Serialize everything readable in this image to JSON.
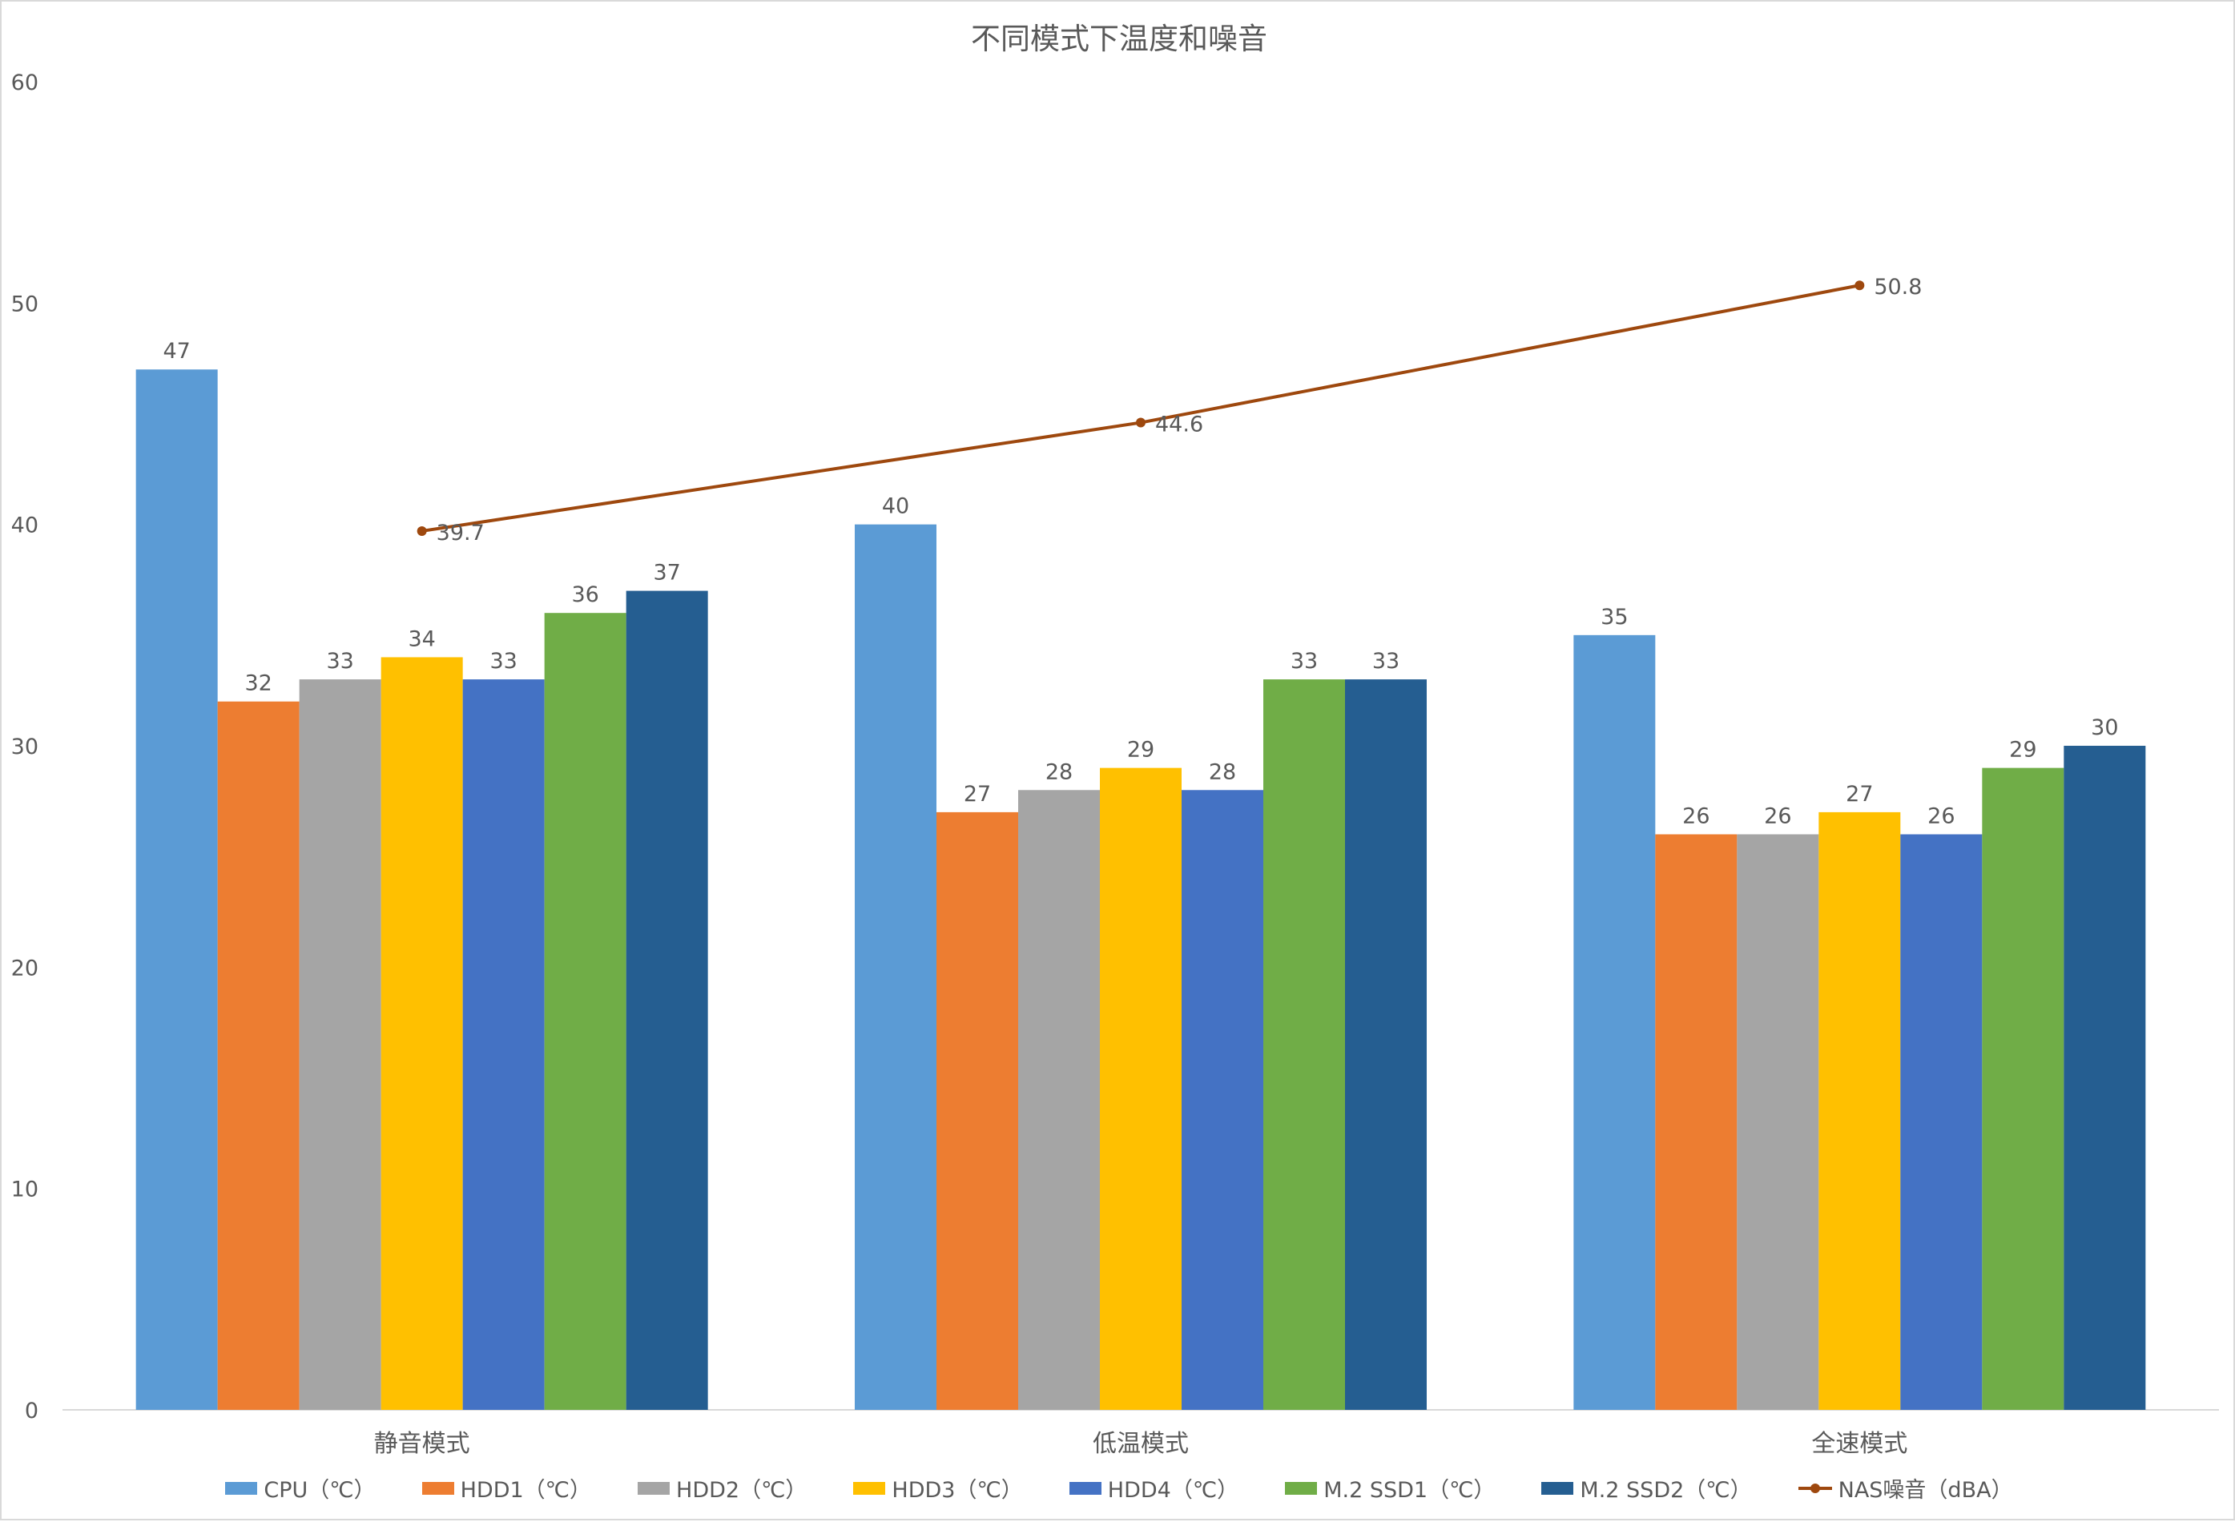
{
  "chart_data": {
    "type": "bar",
    "title": "不同模式下温度和噪音",
    "categories": [
      "静音模式",
      "低温模式",
      "全速模式"
    ],
    "ylim": [
      0,
      60
    ],
    "yticks": [
      0,
      10,
      20,
      30,
      40,
      50,
      60
    ],
    "grid": false,
    "legend": "bottom",
    "series": [
      {
        "name": "CPU（℃）",
        "type": "bar",
        "color": "#5b9bd5",
        "values": [
          47,
          40,
          35
        ]
      },
      {
        "name": "HDD1（℃）",
        "type": "bar",
        "color": "#ed7d31",
        "values": [
          32,
          27,
          26
        ]
      },
      {
        "name": "HDD2（℃）",
        "type": "bar",
        "color": "#a5a5a5",
        "values": [
          33,
          28,
          26
        ]
      },
      {
        "name": "HDD3（℃）",
        "type": "bar",
        "color": "#ffc000",
        "values": [
          34,
          29,
          27
        ]
      },
      {
        "name": "HDD4（℃）",
        "type": "bar",
        "color": "#4472c4",
        "values": [
          33,
          28,
          26
        ]
      },
      {
        "name": "M.2 SSD1（℃）",
        "type": "bar",
        "color": "#70ad47",
        "values": [
          36,
          33,
          29
        ]
      },
      {
        "name": "M.2 SSD2（℃）",
        "type": "bar",
        "color": "#255e91",
        "values": [
          37,
          33,
          30
        ]
      },
      {
        "name": "NAS噪音（dBA）",
        "type": "line",
        "color": "#9e480e",
        "values": [
          39.7,
          44.6,
          50.8
        ]
      }
    ]
  },
  "colors": {
    "text": "#595959",
    "axis": "#d9d9d9"
  }
}
